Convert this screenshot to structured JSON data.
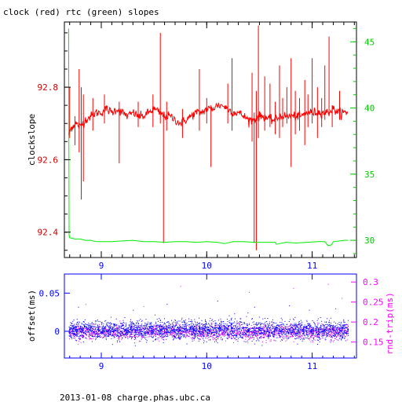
{
  "header": {
    "title": "clock (red) rtc (green) slopes"
  },
  "footer": {
    "text": "2013-01-08 charge.phas.ubc.ca"
  },
  "colors": {
    "clock": "#ff0000",
    "rtc": "#00ee00",
    "offset": "#0000ff",
    "rtt": "#ff00ff",
    "axis_black": "#000000",
    "axis_blue": "#0000ff",
    "left_ticks": "#cc0000",
    "right_ticks": "#00cc00"
  },
  "chart_data": [
    {
      "type": "line",
      "title": "clock (red) rtc (green) slopes",
      "xlim": [
        8.65,
        11.42
      ],
      "x_ticks": [
        9,
        10,
        11
      ],
      "x_tick_labels": [
        "9",
        "10",
        "11"
      ],
      "ylabel": "clockslope",
      "ylim": [
        92.33,
        92.98
      ],
      "y_ticks": [
        92.4,
        92.6,
        92.8
      ],
      "y_tick_labels": [
        "92.4",
        "92.6",
        "92.8"
      ],
      "y2lim": [
        28.7,
        46.5
      ],
      "y2_ticks": [
        30,
        35,
        40,
        45
      ],
      "y2_tick_labels": [
        "30",
        "35",
        "40",
        "45"
      ],
      "series": [
        {
          "name": "clock",
          "axis": "left",
          "x": [
            8.69,
            8.72,
            8.76,
            8.8,
            8.85,
            8.9,
            8.95,
            9.0,
            9.05,
            9.1,
            9.15,
            9.2,
            9.25,
            9.3,
            9.35,
            9.4,
            9.45,
            9.5,
            9.55,
            9.6,
            9.65,
            9.7,
            9.75,
            9.8,
            9.85,
            9.9,
            9.95,
            10.0,
            10.05,
            10.1,
            10.15,
            10.2,
            10.25,
            10.3,
            10.35,
            10.4,
            10.45,
            10.5,
            10.55,
            10.6,
            10.65,
            10.7,
            10.75,
            10.8,
            10.85,
            10.9,
            10.95,
            11.0,
            11.05,
            11.1,
            11.15,
            11.2,
            11.25,
            11.3,
            11.34
          ],
          "y": [
            92.67,
            92.69,
            92.7,
            92.69,
            92.71,
            92.72,
            92.73,
            92.73,
            92.74,
            92.73,
            92.74,
            92.73,
            92.72,
            92.73,
            92.72,
            92.72,
            92.73,
            92.74,
            92.73,
            92.72,
            92.72,
            92.71,
            92.7,
            92.71,
            92.72,
            92.73,
            92.73,
            92.74,
            92.74,
            92.75,
            92.75,
            92.74,
            92.73,
            92.73,
            92.72,
            92.71,
            92.71,
            92.72,
            92.72,
            92.71,
            92.71,
            92.72,
            92.72,
            92.72,
            92.72,
            92.72,
            92.73,
            92.73,
            92.73,
            92.73,
            92.73,
            92.74,
            92.73,
            92.73,
            92.73
          ],
          "spikes": [
            [
              8.7,
              92.8,
              92.66
            ],
            [
              8.75,
              92.72,
              92.64
            ],
            [
              8.79,
              92.85,
              92.62
            ],
            [
              8.81,
              92.8,
              92.49
            ],
            [
              8.83,
              92.78,
              92.54
            ],
            [
              8.92,
              92.77,
              92.68
            ],
            [
              9.03,
              92.78,
              92.7
            ],
            [
              9.17,
              92.76,
              92.59
            ],
            [
              9.35,
              92.76,
              92.69
            ],
            [
              9.49,
              92.78,
              92.69
            ],
            [
              9.56,
              92.95,
              92.7
            ],
            [
              9.59,
              92.72,
              92.37
            ],
            [
              9.62,
              92.76,
              92.68
            ],
            [
              9.77,
              92.74,
              92.66
            ],
            [
              9.93,
              92.85,
              92.68
            ],
            [
              10.0,
              92.77,
              92.7
            ],
            [
              10.04,
              92.75,
              92.58
            ],
            [
              10.2,
              92.81,
              92.7
            ],
            [
              10.24,
              92.88,
              92.68
            ],
            [
              10.43,
              92.84,
              92.65
            ],
            [
              10.45,
              92.73,
              92.37
            ],
            [
              10.47,
              92.79,
              92.35
            ],
            [
              10.49,
              92.97,
              92.66
            ],
            [
              10.55,
              92.83,
              92.68
            ],
            [
              10.6,
              92.81,
              92.69
            ],
            [
              10.65,
              92.76,
              92.67
            ],
            [
              10.69,
              92.86,
              92.66
            ],
            [
              10.72,
              92.77,
              92.69
            ],
            [
              10.76,
              92.8,
              92.7
            ],
            [
              10.8,
              92.88,
              92.58
            ],
            [
              10.84,
              92.79,
              92.67
            ],
            [
              10.88,
              92.77,
              92.68
            ],
            [
              10.93,
              92.82,
              92.64
            ],
            [
              10.96,
              92.78,
              92.69
            ],
            [
              11.0,
              92.88,
              92.7
            ],
            [
              11.05,
              92.8,
              92.66
            ],
            [
              11.09,
              92.77,
              92.69
            ],
            [
              11.12,
              92.86,
              92.71
            ],
            [
              11.16,
              92.94,
              92.72
            ],
            [
              11.19,
              92.75,
              92.69
            ],
            [
              11.26,
              92.79,
              92.71
            ]
          ]
        },
        {
          "name": "rtc",
          "axis": "right",
          "x": [
            8.69,
            8.695,
            8.7,
            8.75,
            8.8,
            8.85,
            8.9,
            8.95,
            9.0,
            9.1,
            9.2,
            9.3,
            9.4,
            9.5,
            9.6,
            9.7,
            9.8,
            9.9,
            10.0,
            10.1,
            10.17,
            10.25,
            10.35,
            10.45,
            10.55,
            10.65,
            10.66,
            10.75,
            10.85,
            10.95,
            11.05,
            11.12,
            11.15,
            11.18,
            11.2,
            11.26,
            11.3,
            11.34
          ],
          "y": [
            46.0,
            30.4,
            30.2,
            30.1,
            30.1,
            30.0,
            30.0,
            29.9,
            29.9,
            29.9,
            29.95,
            30.0,
            29.9,
            29.9,
            29.85,
            29.9,
            29.9,
            29.85,
            29.9,
            29.85,
            29.75,
            29.9,
            29.9,
            29.85,
            29.85,
            29.85,
            29.7,
            29.85,
            29.8,
            29.85,
            29.9,
            29.9,
            29.6,
            29.65,
            29.9,
            29.95,
            30.0,
            30.0
          ]
        }
      ]
    },
    {
      "type": "scatter",
      "xlim": [
        8.65,
        11.42
      ],
      "x_ticks": [
        9,
        10,
        11
      ],
      "x_tick_labels": [
        "9",
        "10",
        "11"
      ],
      "ylabel": "offset(ms)",
      "ylim": [
        -0.035,
        0.075
      ],
      "y_ticks": [
        0,
        0.05
      ],
      "y_tick_labels": [
        "0",
        "0.05"
      ],
      "y2label": "rnd-trip(ms)",
      "y2lim": [
        0.11,
        0.32
      ],
      "y2_ticks": [
        0.15,
        0.2,
        0.25,
        0.3
      ],
      "y2_tick_labels": [
        "0.15",
        "0.2",
        "0.25",
        "0.3"
      ],
      "series": [
        {
          "name": "offset",
          "axis": "left",
          "x_range": [
            8.69,
            11.34
          ],
          "center": 0.002,
          "spread": 0.01,
          "points": 3200,
          "outliers": [
            [
              8.78,
              0.032
            ],
            [
              9.3,
              0.028
            ],
            [
              9.62,
              0.036
            ],
            [
              10.1,
              0.04
            ],
            [
              10.45,
              0.032
            ],
            [
              10.78,
              0.034
            ],
            [
              10.97,
              0.028
            ],
            [
              11.22,
              0.03
            ]
          ]
        },
        {
          "name": "rnd-trip",
          "axis": "right",
          "x_range": [
            8.69,
            11.34
          ],
          "center": 0.175,
          "spread": 0.015,
          "points": 1600,
          "outliers": [
            [
              8.85,
              0.245
            ],
            [
              9.4,
              0.24
            ],
            [
              9.75,
              0.29
            ],
            [
              10.4,
              0.275
            ],
            [
              10.82,
              0.285
            ],
            [
              11.15,
              0.295
            ],
            [
              11.28,
              0.26
            ]
          ]
        }
      ]
    }
  ]
}
